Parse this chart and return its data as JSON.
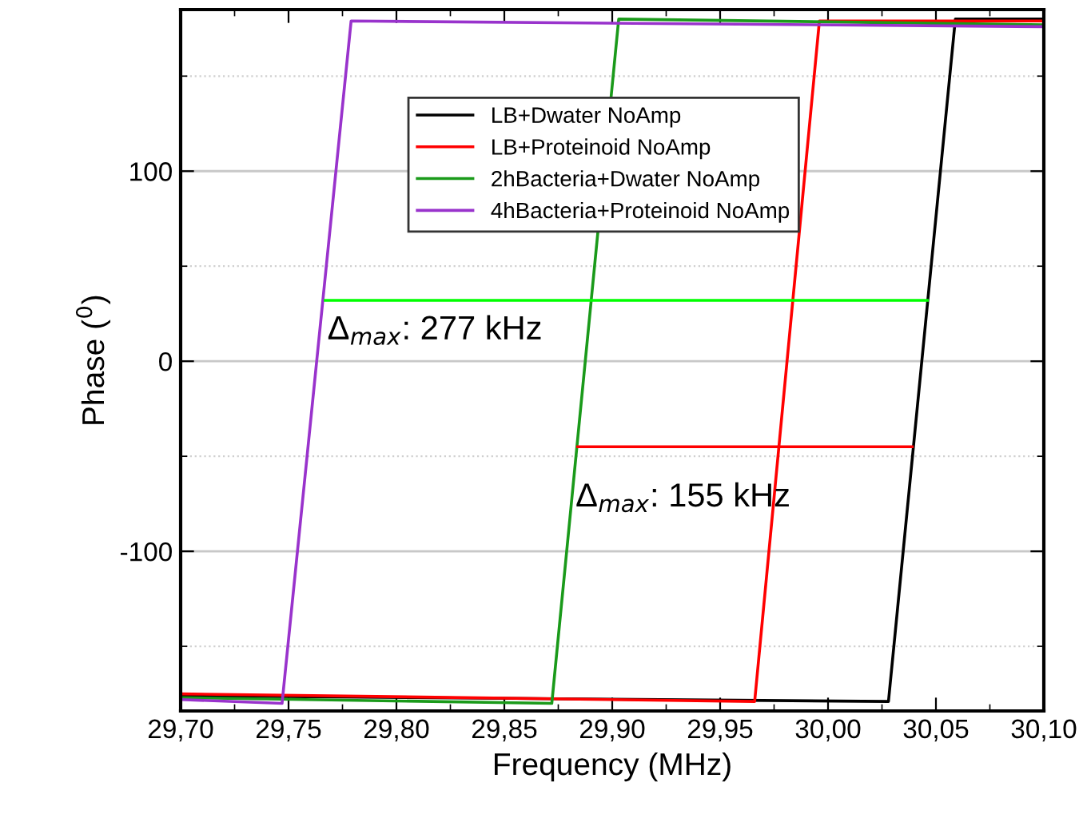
{
  "chart_data": {
    "type": "line",
    "xlabel": "Frequency (MHz)",
    "ylabel": "Phase ($^{0}$)",
    "xlim": [
      29.7,
      30.1
    ],
    "ylim": [
      -184,
      185
    ],
    "xticks": [
      {
        "value": 29.7,
        "label": "29,70"
      },
      {
        "value": 29.75,
        "label": "29,75"
      },
      {
        "value": 29.8,
        "label": "29,80"
      },
      {
        "value": 29.85,
        "label": "29,85"
      },
      {
        "value": 29.9,
        "label": "29,90"
      },
      {
        "value": 29.95,
        "label": "29,95"
      },
      {
        "value": 30.0,
        "label": "30,00"
      },
      {
        "value": 30.05,
        "label": "30,05"
      },
      {
        "value": 30.1,
        "label": "30,10"
      }
    ],
    "yticks": [
      -100,
      0,
      100
    ],
    "grid": "y",
    "legend": "top",
    "line_style": "solid",
    "series": [
      {
        "name": "LB+Dwater NoAmp",
        "color": "#000000",
        "x": [
          29.7,
          30.028,
          30.059,
          30.1
        ],
        "values": [
          -176,
          -179,
          180,
          180
        ]
      },
      {
        "name": "LB+Proteinoid NoAmp",
        "color": "#ff0000",
        "x": [
          29.7,
          29.966,
          29.996,
          30.1
        ],
        "values": [
          -175,
          -179,
          179,
          179
        ]
      },
      {
        "name": "2hBacteria+Dwater NoAmp",
        "color": "#1a9a1a",
        "x": [
          29.7,
          29.872,
          29.903,
          30.1
        ],
        "values": [
          -177,
          -180,
          180,
          177
        ]
      },
      {
        "name": "4hBacteria+Proteinoid NoAmp",
        "color": "#9933cc",
        "x": [
          29.7,
          29.747,
          29.779,
          30.1
        ],
        "values": [
          -178,
          -180,
          179,
          176
        ]
      },
      {
        "color": "#00ff00",
        "x": [
          29.767,
          30.046
        ],
        "values": [
          32,
          32
        ]
      },
      {
        "color": "#ff0000",
        "x": [
          29.884,
          30.039
        ],
        "values": [
          -45,
          -45
        ]
      }
    ],
    "annotations": [
      {
        "text": "Δ$_{max}$: 277 kHz",
        "x": 29.768,
        "y": 16
      },
      {
        "text": "Δ$_{max}$: 155 kHz",
        "x": 29.883,
        "y": -72
      }
    ]
  }
}
